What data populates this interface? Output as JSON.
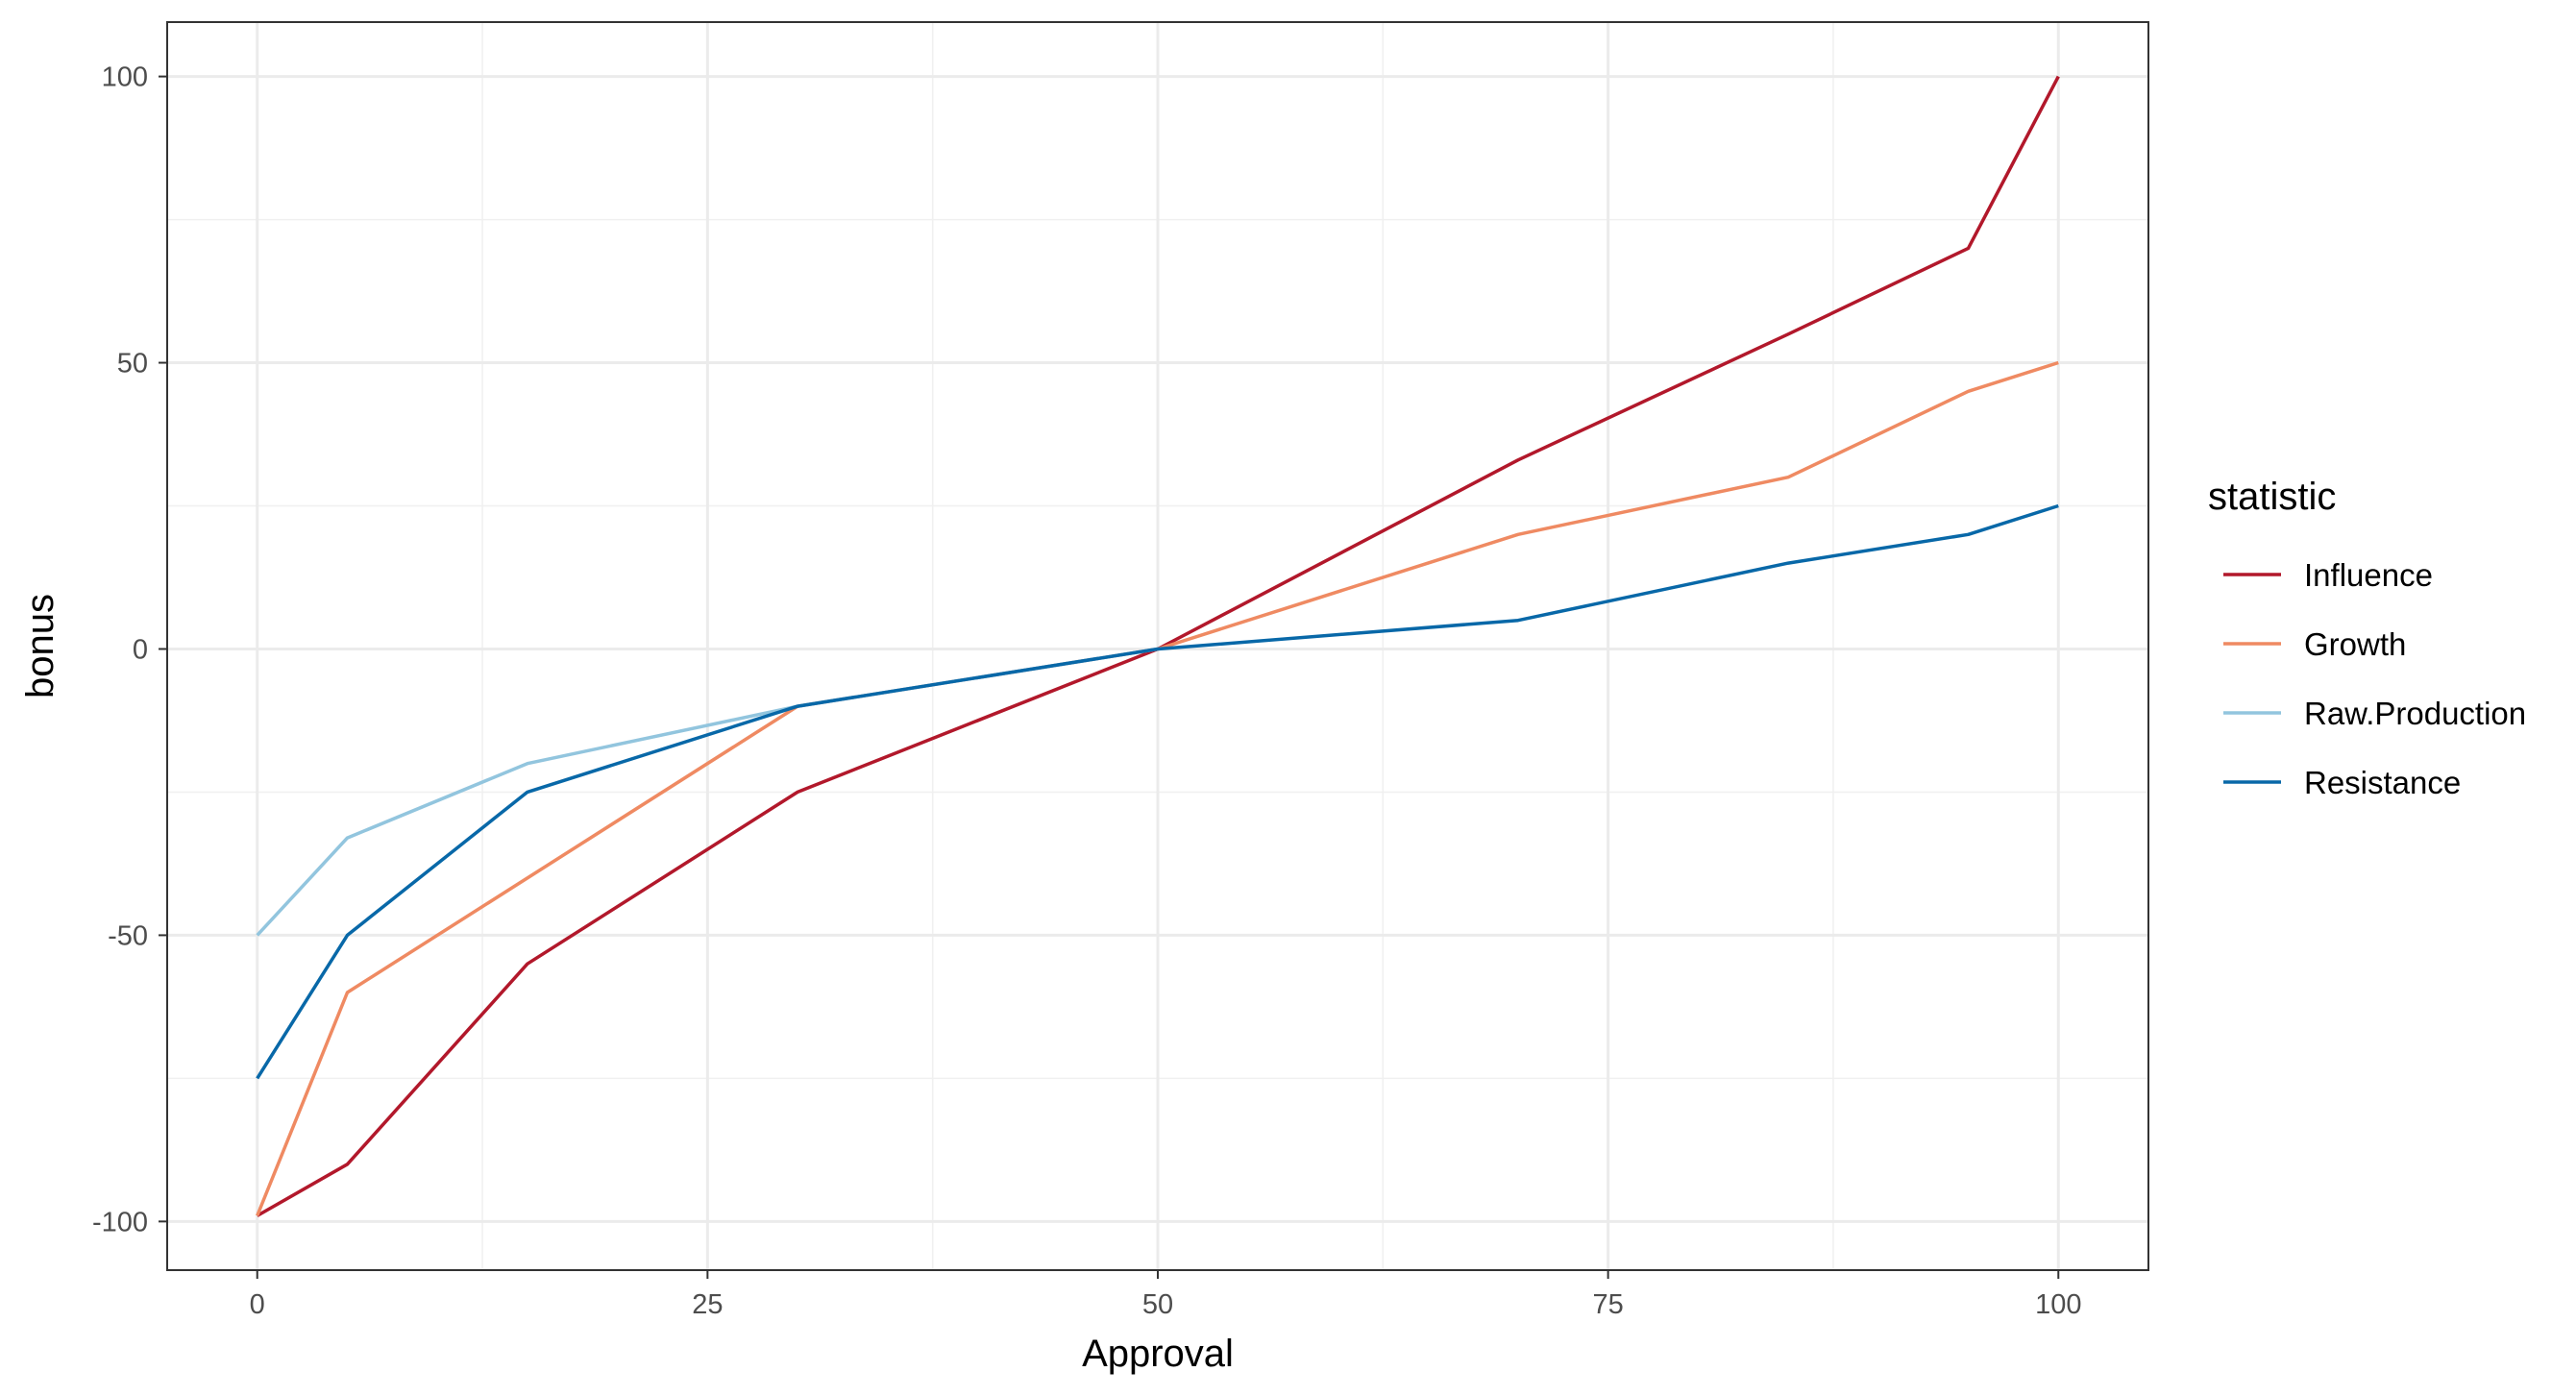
{
  "chart_data": {
    "type": "line",
    "title": "",
    "xlabel": "Approval",
    "ylabel": "bonus",
    "xlim": [
      -5,
      105
    ],
    "ylim": [
      -108.5,
      109.5
    ],
    "x_ticks": [
      0,
      25,
      50,
      75,
      100
    ],
    "y_ticks": [
      -100,
      -50,
      0,
      50,
      100
    ],
    "grid": true,
    "legend": {
      "title": "statistic",
      "placement": "right"
    },
    "series": [
      {
        "name": "Influence",
        "color": "#b2182b",
        "x": [
          0,
          5,
          15,
          30,
          50,
          70,
          85,
          95,
          100
        ],
        "y": [
          -99,
          -90,
          -55,
          -25,
          0,
          33,
          55,
          70,
          100
        ]
      },
      {
        "name": "Growth",
        "color": "#ef8a62",
        "x": [
          0,
          5,
          30,
          50,
          70,
          85,
          95,
          100
        ],
        "y": [
          -99,
          -60,
          -10,
          0,
          20,
          30,
          45,
          50
        ]
      },
      {
        "name": "Raw.Production",
        "color": "#92c5de",
        "x": [
          0,
          5,
          15,
          30,
          50
        ],
        "y": [
          -50,
          -33,
          -20,
          -10,
          0
        ]
      },
      {
        "name": "Resistance",
        "color": "#0868a8",
        "x": [
          0,
          5,
          15,
          30,
          50,
          70,
          85,
          95,
          100
        ],
        "y": [
          -75,
          -50,
          -25,
          -10,
          0,
          5,
          15,
          20,
          25
        ]
      }
    ]
  }
}
